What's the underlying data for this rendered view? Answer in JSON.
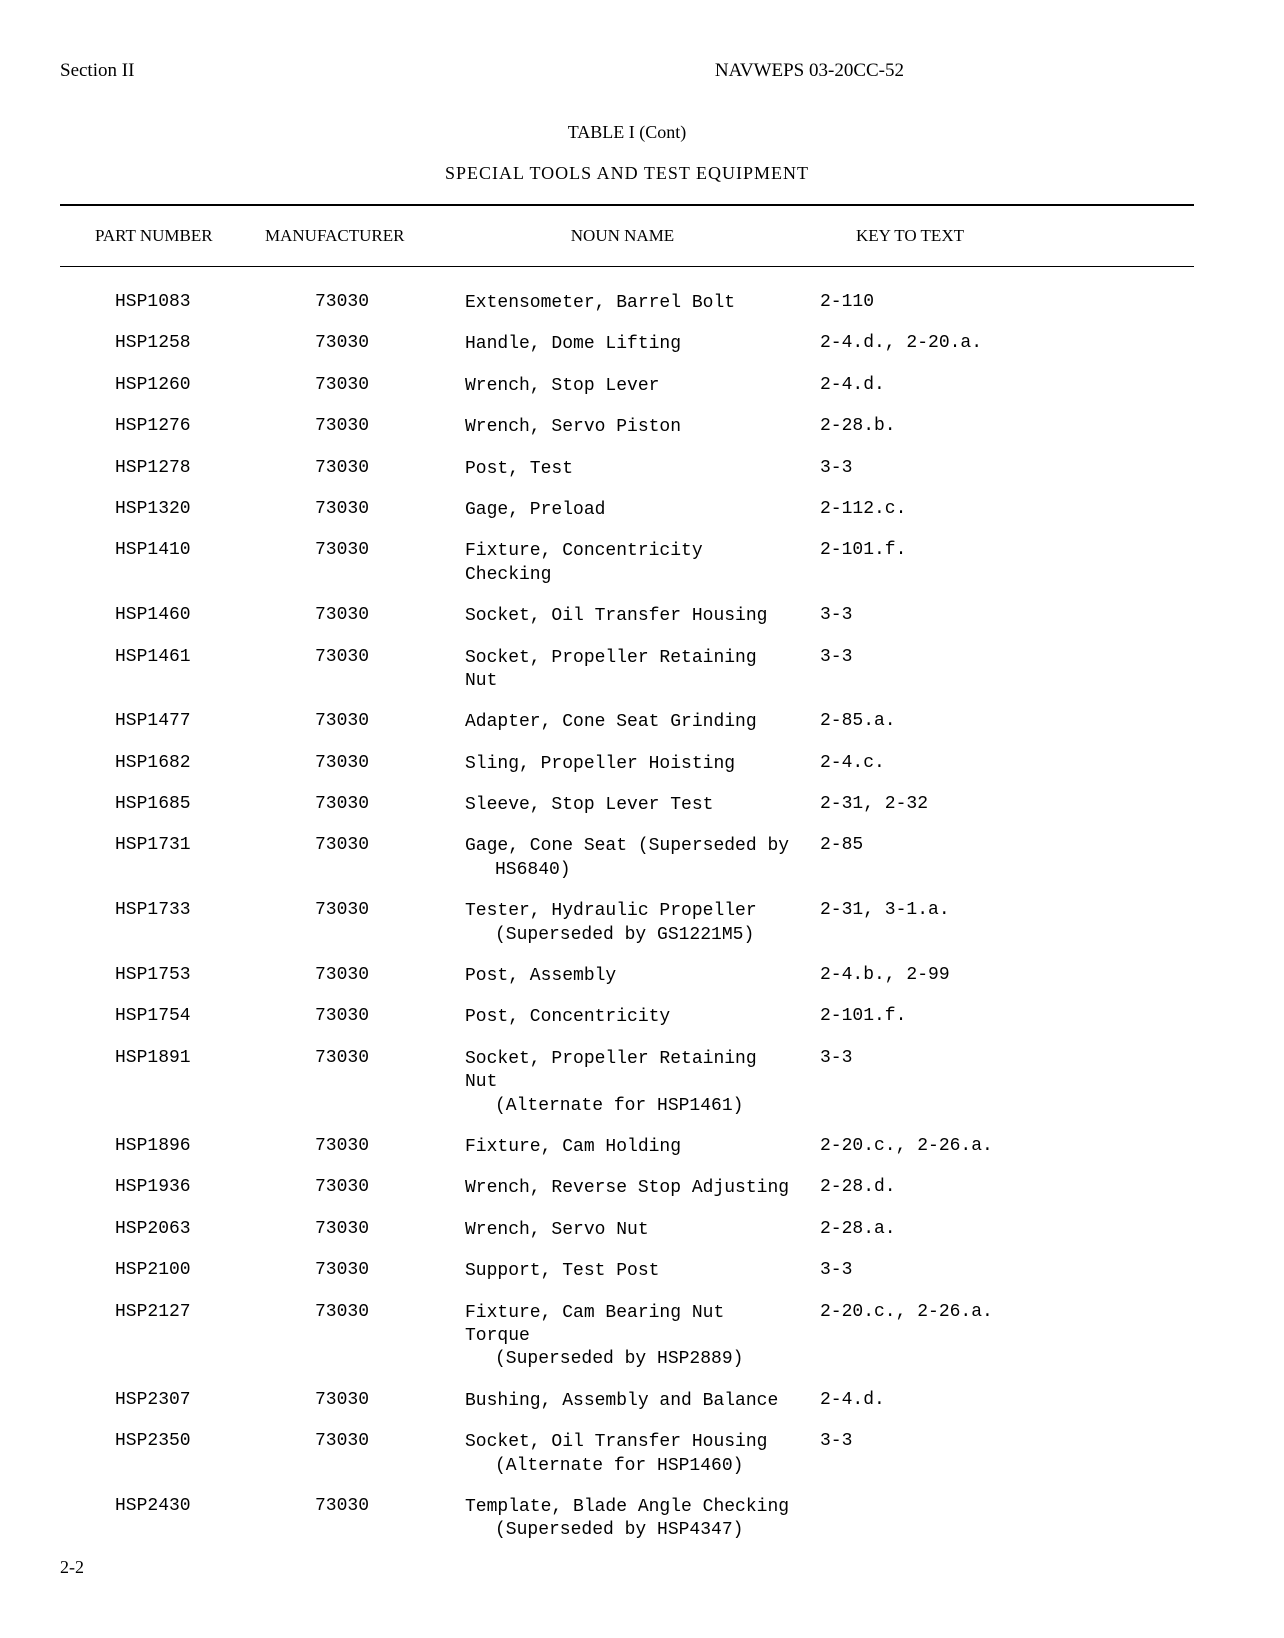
{
  "header": {
    "section": "Section II",
    "docId": "NAVWEPS 03-20CC-52"
  },
  "table": {
    "title": "TABLE I (Cont)",
    "subtitle": "SPECIAL TOOLS AND TEST EQUIPMENT",
    "columns": {
      "partNumber": "PART NUMBER",
      "manufacturer": "MANUFACTURER",
      "nounName": "NOUN NAME",
      "keyToText": "KEY TO TEXT"
    },
    "rows": [
      {
        "part": "HSP1083",
        "mfr": "73030",
        "noun": "Extensometer, Barrel Bolt",
        "nounCont": "",
        "key": "2-110"
      },
      {
        "part": "HSP1258",
        "mfr": "73030",
        "noun": "Handle, Dome Lifting",
        "nounCont": "",
        "key": "2-4.d., 2-20.a."
      },
      {
        "part": "HSP1260",
        "mfr": "73030",
        "noun": "Wrench, Stop Lever",
        "nounCont": "",
        "key": "2-4.d."
      },
      {
        "part": "HSP1276",
        "mfr": "73030",
        "noun": "Wrench, Servo Piston",
        "nounCont": "",
        "key": "2-28.b."
      },
      {
        "part": "HSP1278",
        "mfr": "73030",
        "noun": "Post, Test",
        "nounCont": "",
        "key": "3-3"
      },
      {
        "part": "HSP1320",
        "mfr": "73030",
        "noun": "Gage, Preload",
        "nounCont": "",
        "key": "2-112.c."
      },
      {
        "part": "HSP1410",
        "mfr": "73030",
        "noun": "Fixture, Concentricity Checking",
        "nounCont": "",
        "key": "2-101.f."
      },
      {
        "part": "HSP1460",
        "mfr": "73030",
        "noun": "Socket, Oil Transfer Housing",
        "nounCont": "",
        "key": "3-3"
      },
      {
        "part": "HSP1461",
        "mfr": "73030",
        "noun": "Socket, Propeller Retaining Nut",
        "nounCont": "",
        "key": "3-3"
      },
      {
        "part": "HSP1477",
        "mfr": "73030",
        "noun": "Adapter, Cone Seat Grinding",
        "nounCont": "",
        "key": "2-85.a."
      },
      {
        "part": "HSP1682",
        "mfr": "73030",
        "noun": "Sling, Propeller Hoisting",
        "nounCont": "",
        "key": "2-4.c."
      },
      {
        "part": "HSP1685",
        "mfr": "73030",
        "noun": "Sleeve, Stop Lever Test",
        "nounCont": "",
        "key": "2-31, 2-32"
      },
      {
        "part": "HSP1731",
        "mfr": "73030",
        "noun": "Gage, Cone Seat (Superseded by",
        "nounCont": "HS6840)",
        "key": "2-85"
      },
      {
        "part": "HSP1733",
        "mfr": "73030",
        "noun": "Tester, Hydraulic Propeller",
        "nounCont": "(Superseded by GS1221M5)",
        "key": "2-31, 3-1.a."
      },
      {
        "part": "HSP1753",
        "mfr": "73030",
        "noun": "Post, Assembly",
        "nounCont": "",
        "key": "2-4.b., 2-99"
      },
      {
        "part": "HSP1754",
        "mfr": "73030",
        "noun": "Post, Concentricity",
        "nounCont": "",
        "key": "2-101.f."
      },
      {
        "part": "HSP1891",
        "mfr": "73030",
        "noun": "Socket, Propeller Retaining Nut",
        "nounCont": "(Alternate for HSP1461)",
        "key": "3-3"
      },
      {
        "part": "HSP1896",
        "mfr": "73030",
        "noun": "Fixture, Cam Holding",
        "nounCont": "",
        "key": "2-20.c., 2-26.a."
      },
      {
        "part": "HSP1936",
        "mfr": "73030",
        "noun": "Wrench, Reverse Stop Adjusting",
        "nounCont": "",
        "key": "2-28.d."
      },
      {
        "part": "HSP2063",
        "mfr": "73030",
        "noun": "Wrench, Servo Nut",
        "nounCont": "",
        "key": "2-28.a."
      },
      {
        "part": "HSP2100",
        "mfr": "73030",
        "noun": "Support, Test Post",
        "nounCont": "",
        "key": "3-3"
      },
      {
        "part": "HSP2127",
        "mfr": "73030",
        "noun": "Fixture, Cam Bearing Nut Torque",
        "nounCont": "(Superseded by HSP2889)",
        "key": "2-20.c., 2-26.a."
      },
      {
        "part": "HSP2307",
        "mfr": "73030",
        "noun": "Bushing, Assembly and Balance",
        "nounCont": "",
        "key": "2-4.d."
      },
      {
        "part": "HSP2350",
        "mfr": "73030",
        "noun": "Socket, Oil Transfer Housing",
        "nounCont": "(Alternate for HSP1460)",
        "key": "3-3"
      },
      {
        "part": "HSP2430",
        "mfr": "73030",
        "noun": "Template, Blade Angle Checking",
        "nounCont": "(Superseded by HSP4347)",
        "key": ""
      }
    ]
  },
  "pageNumber": "2-2",
  "styling": {
    "backgroundColor": "#ffffff",
    "textColor": "#000000",
    "borderColor": "#000000",
    "bodyFont": "Courier New",
    "headerFont": "Georgia",
    "bodyFontSize": 18,
    "headerFontSize": 17,
    "titleFontSize": 18
  }
}
